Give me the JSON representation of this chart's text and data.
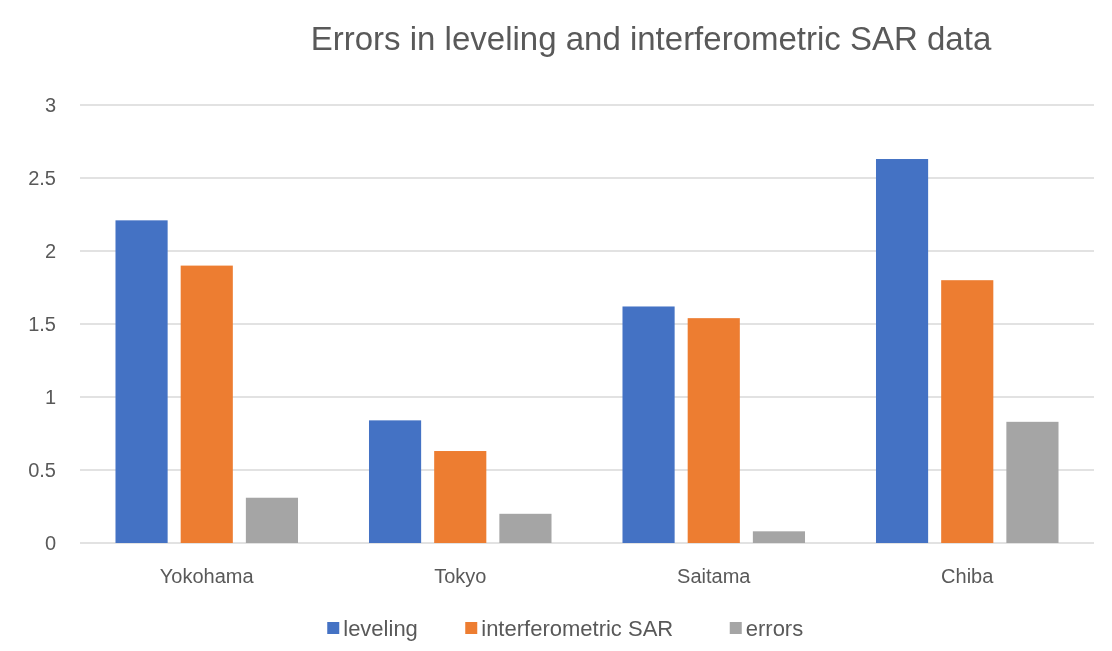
{
  "chart_data": {
    "type": "bar",
    "title": "Errors in leveling and interferometric SAR data",
    "categories": [
      "Yokohama",
      "Tokyo",
      "Saitama",
      "Chiba"
    ],
    "series": [
      {
        "name": "leveling",
        "color": "#4472c4",
        "values": [
          2.21,
          0.84,
          1.62,
          2.63
        ]
      },
      {
        "name": "interferometric SAR",
        "color": "#ed7d31",
        "values": [
          1.9,
          0.63,
          1.54,
          1.8
        ]
      },
      {
        "name": "errors",
        "color": "#a5a5a5",
        "values": [
          0.31,
          0.2,
          0.08,
          0.83
        ]
      }
    ],
    "ylim": [
      0,
      3
    ],
    "yticks": [
      0,
      {
        "value": 0.5,
        "label": "0.5"
      },
      1,
      {
        "value": 1.5,
        "label": "1.5"
      },
      2,
      {
        "value": 2.5,
        "label": "2.5"
      },
      3
    ],
    "grid": "y",
    "legend": "bottom"
  }
}
